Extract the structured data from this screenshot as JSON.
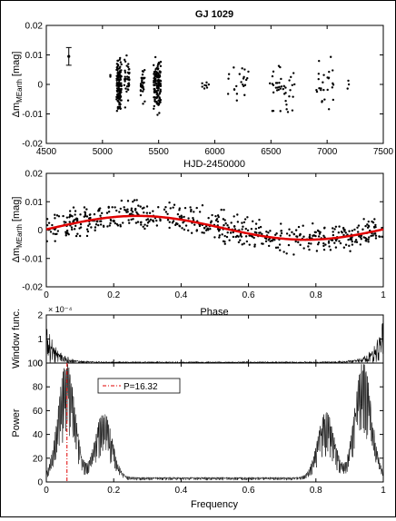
{
  "figure": {
    "title": "GJ 1029"
  },
  "chart_data": [
    {
      "type": "scatter",
      "title": "GJ 1029",
      "xlabel": "HJD-2450000",
      "ylabel_main": "Δm",
      "ylabel_sub": "MEarth",
      "ylabel_unit": "[mag]",
      "xlim": [
        4500,
        7500
      ],
      "ylim": [
        -0.02,
        0.02
      ],
      "xticks": [
        "4500",
        "5000",
        "5500",
        "6000",
        "6500",
        "7000",
        "7500"
      ],
      "yticks": [
        "-0.02",
        "-0.01",
        "0",
        "0.01",
        "0.02"
      ],
      "error_bar": {
        "x": 4700,
        "y": 0.0095,
        "yerr": 0.003
      },
      "point_color": "#000000",
      "clusters": [
        {
          "x_range": [
            5060,
            5075
          ],
          "y_center": 0.002,
          "y_spread": 0.004,
          "n": 3
        },
        {
          "x_range": [
            5125,
            5170
          ],
          "y_center": 0.0,
          "y_spread": 0.012,
          "n": 130
        },
        {
          "x_range": [
            5190,
            5240
          ],
          "y_center": 0.001,
          "y_spread": 0.011,
          "n": 40
        },
        {
          "x_range": [
            5340,
            5380
          ],
          "y_center": 0.001,
          "y_spread": 0.009,
          "n": 30
        },
        {
          "x_range": [
            5455,
            5520
          ],
          "y_center": 0.0,
          "y_spread": 0.012,
          "n": 130
        },
        {
          "x_range": [
            5880,
            5950
          ],
          "y_center": 0.0,
          "y_spread": 0.003,
          "n": 8
        },
        {
          "x_range": [
            6100,
            6300
          ],
          "y_center": 0.0,
          "y_spread": 0.009,
          "n": 22
        },
        {
          "x_range": [
            6480,
            6720
          ],
          "y_center": -0.001,
          "y_spread": 0.011,
          "n": 40
        },
        {
          "x_range": [
            6900,
            7060
          ],
          "y_center": 0.0,
          "y_spread": 0.012,
          "n": 26
        },
        {
          "x_range": [
            7180,
            7200
          ],
          "y_center": 0.0,
          "y_spread": 0.005,
          "n": 3
        }
      ]
    },
    {
      "type": "scatter",
      "xlabel": "Phase",
      "ylabel_main": "Δm",
      "ylabel_sub": "MEarth",
      "ylabel_unit": "[mag]",
      "xlim": [
        0,
        1
      ],
      "ylim": [
        -0.02,
        0.02
      ],
      "xticks": [
        "0",
        "0.2",
        "0.4",
        "0.6",
        "0.8",
        "1"
      ],
      "yticks": [
        "-0.02",
        "-0.01",
        "0",
        "0.01",
        "0.02"
      ],
      "point_color": "#000000",
      "n_points": 560,
      "fit": {
        "color": "#e00000",
        "mean": 0.0008,
        "amplitude": 0.0042,
        "peak_phase": 0.27
      }
    },
    {
      "type": "line",
      "ylabel": "Window func.",
      "ylim": [
        0,
        0.0002
      ],
      "exponent_label": "× 10⁻⁴",
      "yticks": [
        "0",
        "1",
        "2"
      ],
      "xlim": [
        0,
        1
      ],
      "line_color": "#000000",
      "peaks": [
        {
          "x": 0.0,
          "y": 0.0001
        },
        {
          "x": 0.005,
          "y": 0.00018
        },
        {
          "x": 0.995,
          "y": 0.00018
        },
        {
          "x": 1.0,
          "y": 0.0001
        }
      ]
    },
    {
      "type": "line",
      "xlabel": "Frequency",
      "ylabel": "Power",
      "xlim": [
        0,
        1
      ],
      "ylim": [
        0,
        100
      ],
      "xticks": [
        "0",
        "0.2",
        "0.4",
        "0.6",
        "0.8",
        "1"
      ],
      "yticks": [
        "0",
        "20",
        "40",
        "60",
        "80",
        "100"
      ],
      "line_color": "#000000",
      "marker": {
        "label": "P=16.32",
        "x": 0.0613,
        "color": "#e00000"
      },
      "peaks": [
        {
          "x": 0.06,
          "y": 97
        },
        {
          "x": 0.17,
          "y": 55
        },
        {
          "x": 0.83,
          "y": 55
        },
        {
          "x": 0.94,
          "y": 97
        }
      ]
    }
  ]
}
